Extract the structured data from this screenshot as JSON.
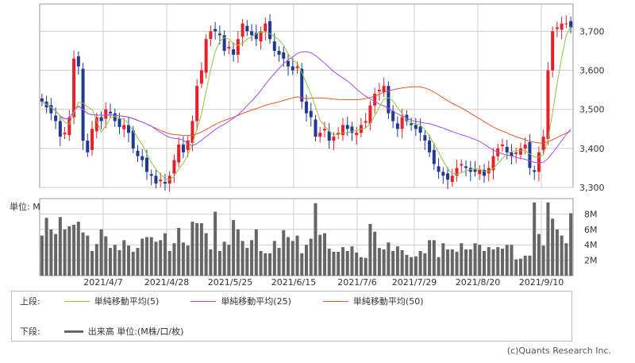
{
  "chart_data": {
    "type": "candlestick",
    "price_axis": {
      "ylim": [
        3300,
        3770
      ],
      "ticks": [
        "3,700",
        "3,600",
        "3,500",
        "3,400",
        "3,300"
      ]
    },
    "volume_axis": {
      "unit_label": "単位: M",
      "ylim": [
        0,
        10
      ],
      "ticks": [
        "8M",
        "6M",
        "4M",
        "2M"
      ]
    },
    "x_ticks": [
      "2021/4/7",
      "2021/4/28",
      "2021/5/25",
      "2021/6/15",
      "2021/7/6",
      "2021/7/29",
      "2021/8/20",
      "2021/9/10"
    ],
    "close_series": [
      3520,
      3505,
      3490,
      3470,
      3430,
      3440,
      3480,
      3630,
      3610,
      3420,
      3390,
      3450,
      3480,
      3470,
      3500,
      3490,
      3470,
      3455,
      3460,
      3440,
      3400,
      3380,
      3370,
      3340,
      3330,
      3310,
      3320,
      3310,
      3330,
      3370,
      3410,
      3390,
      3420,
      3470,
      3560,
      3600,
      3680,
      3700,
      3700,
      3690,
      3650,
      3660,
      3640,
      3680,
      3720,
      3700,
      3690,
      3680,
      3700,
      3720,
      3680,
      3650,
      3640,
      3630,
      3610,
      3600,
      3610,
      3520,
      3490,
      3480,
      3430,
      3440,
      3450,
      3420,
      3430,
      3440,
      3460,
      3450,
      3440,
      3440,
      3460,
      3470,
      3510,
      3540,
      3550,
      3560,
      3490,
      3470,
      3450,
      3480,
      3470,
      3460,
      3450,
      3440,
      3420,
      3390,
      3360,
      3340,
      3330,
      3320,
      3330,
      3350,
      3360,
      3350,
      3340,
      3340,
      3345,
      3330,
      3350,
      3380,
      3400,
      3410,
      3390,
      3380,
      3390,
      3400,
      3410,
      3350,
      3340,
      3390,
      3430,
      3600,
      3700,
      3710,
      3720,
      3720,
      3710
    ],
    "volumes": [
      5.2,
      7.5,
      6.0,
      5.4,
      7.6,
      6.0,
      6.4,
      6.6,
      7.0,
      5.6,
      5.2,
      3.2,
      4.1,
      6.0,
      5.1,
      3.6,
      4.0,
      3.3,
      4.6,
      3.9,
      3.1,
      3.6,
      4.8,
      5.0,
      5.0,
      4.4,
      4.6,
      5.5,
      3.2,
      4.2,
      6.2,
      4.3,
      3.9,
      7.0,
      6.8,
      6.8,
      5.5,
      3.4,
      8.3,
      3.2,
      4.4,
      4.0,
      7.2,
      6.0,
      4.5,
      3.6,
      4.6,
      6.0,
      3.2,
      2.9,
      2.9,
      4.5,
      3.6,
      5.9,
      5.0,
      4.5,
      5.2,
      2.9,
      4.0,
      4.8,
      9.4,
      5.3,
      5.5,
      3.5,
      3.1,
      3.1,
      3.7,
      3.2,
      3.8,
      3.0,
      2.4,
      2.3,
      6.7,
      5.7,
      3.6,
      3.4,
      4.3,
      3.2,
      3.8,
      3.3,
      2.7,
      2.4,
      2.5,
      3.2,
      2.9,
      4.6,
      4.6,
      2.4,
      4.2,
      3.4,
      3.4,
      3.1,
      4.2,
      3.4,
      3.4,
      4.2,
      4.0,
      3.2,
      3.7,
      3.4,
      3.7,
      3.5,
      4.0,
      4.0,
      2.1,
      2.2,
      2.6,
      2.6,
      9.5,
      5.4,
      3.9,
      9.5,
      7.4,
      6.0,
      5.2,
      4.2,
      8.1
    ],
    "legend": {
      "upper_label": "上段:",
      "lower_label": "下段:",
      "ma5": {
        "name": "単純移動平均(5)",
        "color": "#8cc63f"
      },
      "ma25": {
        "name": "単純移動平均(25)",
        "color": "#a64dff"
      },
      "ma50": {
        "name": "単純移動平均(50)",
        "color": "#e8542c"
      },
      "volume": {
        "name": "出来高 単位:(M株/口/枚)",
        "color": "#666666"
      }
    },
    "up_color": "#e8202a",
    "down_color": "#1f3a93",
    "grid": true
  },
  "credit": "(c)Quants Research Inc."
}
